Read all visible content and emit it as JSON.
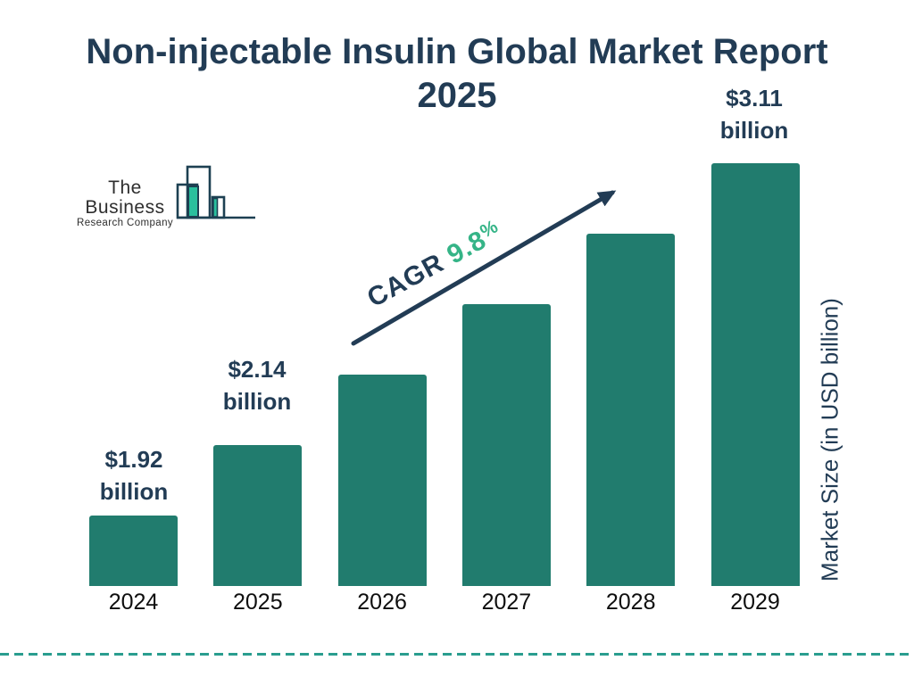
{
  "header": {
    "title_line1": "Non-injectable Insulin Global Market Report",
    "title_line2": "2025"
  },
  "logo": {
    "line1": "The Business",
    "line2": "Research Company"
  },
  "annotation": {
    "cagr_label": "CAGR ",
    "cagr_value": "9.8",
    "cagr_percent": "%"
  },
  "axis": {
    "y_label": "Market Size (in USD billion)"
  },
  "colors": {
    "title_navy": "#223c55",
    "bar_teal": "#217c6e",
    "cagr_green": "#35b487",
    "dashed_rule_teal": "#2a9d8f",
    "x_label_black": "#0e0e0e",
    "logo_outline_navy": "#1d4052",
    "logo_fill_teal": "#2abf9d"
  },
  "chart_data": {
    "type": "bar",
    "title": "Non-injectable Insulin Global Market Report 2025",
    "categories": [
      "2024",
      "2025",
      "2026",
      "2027",
      "2028",
      "2029"
    ],
    "values": [
      1.92,
      2.14,
      null,
      null,
      null,
      3.11
    ],
    "unit": "USD billion",
    "value_labels": [
      {
        "bar_index": 0,
        "line1": "$1.92",
        "line2": "billion"
      },
      {
        "bar_index": 1,
        "line1": "$2.14",
        "line2": "billion"
      },
      {
        "bar_index": 5,
        "line1": "$3.11",
        "line2": "billion"
      }
    ],
    "cagr_annotation": "CAGR 9.8%",
    "xlabel": "",
    "ylabel": "Market Size (in USD billion)",
    "grid": false,
    "legend": "none",
    "bar_color": "#217c6e",
    "relative_heights": [
      1,
      2,
      3,
      4,
      5,
      6
    ]
  }
}
